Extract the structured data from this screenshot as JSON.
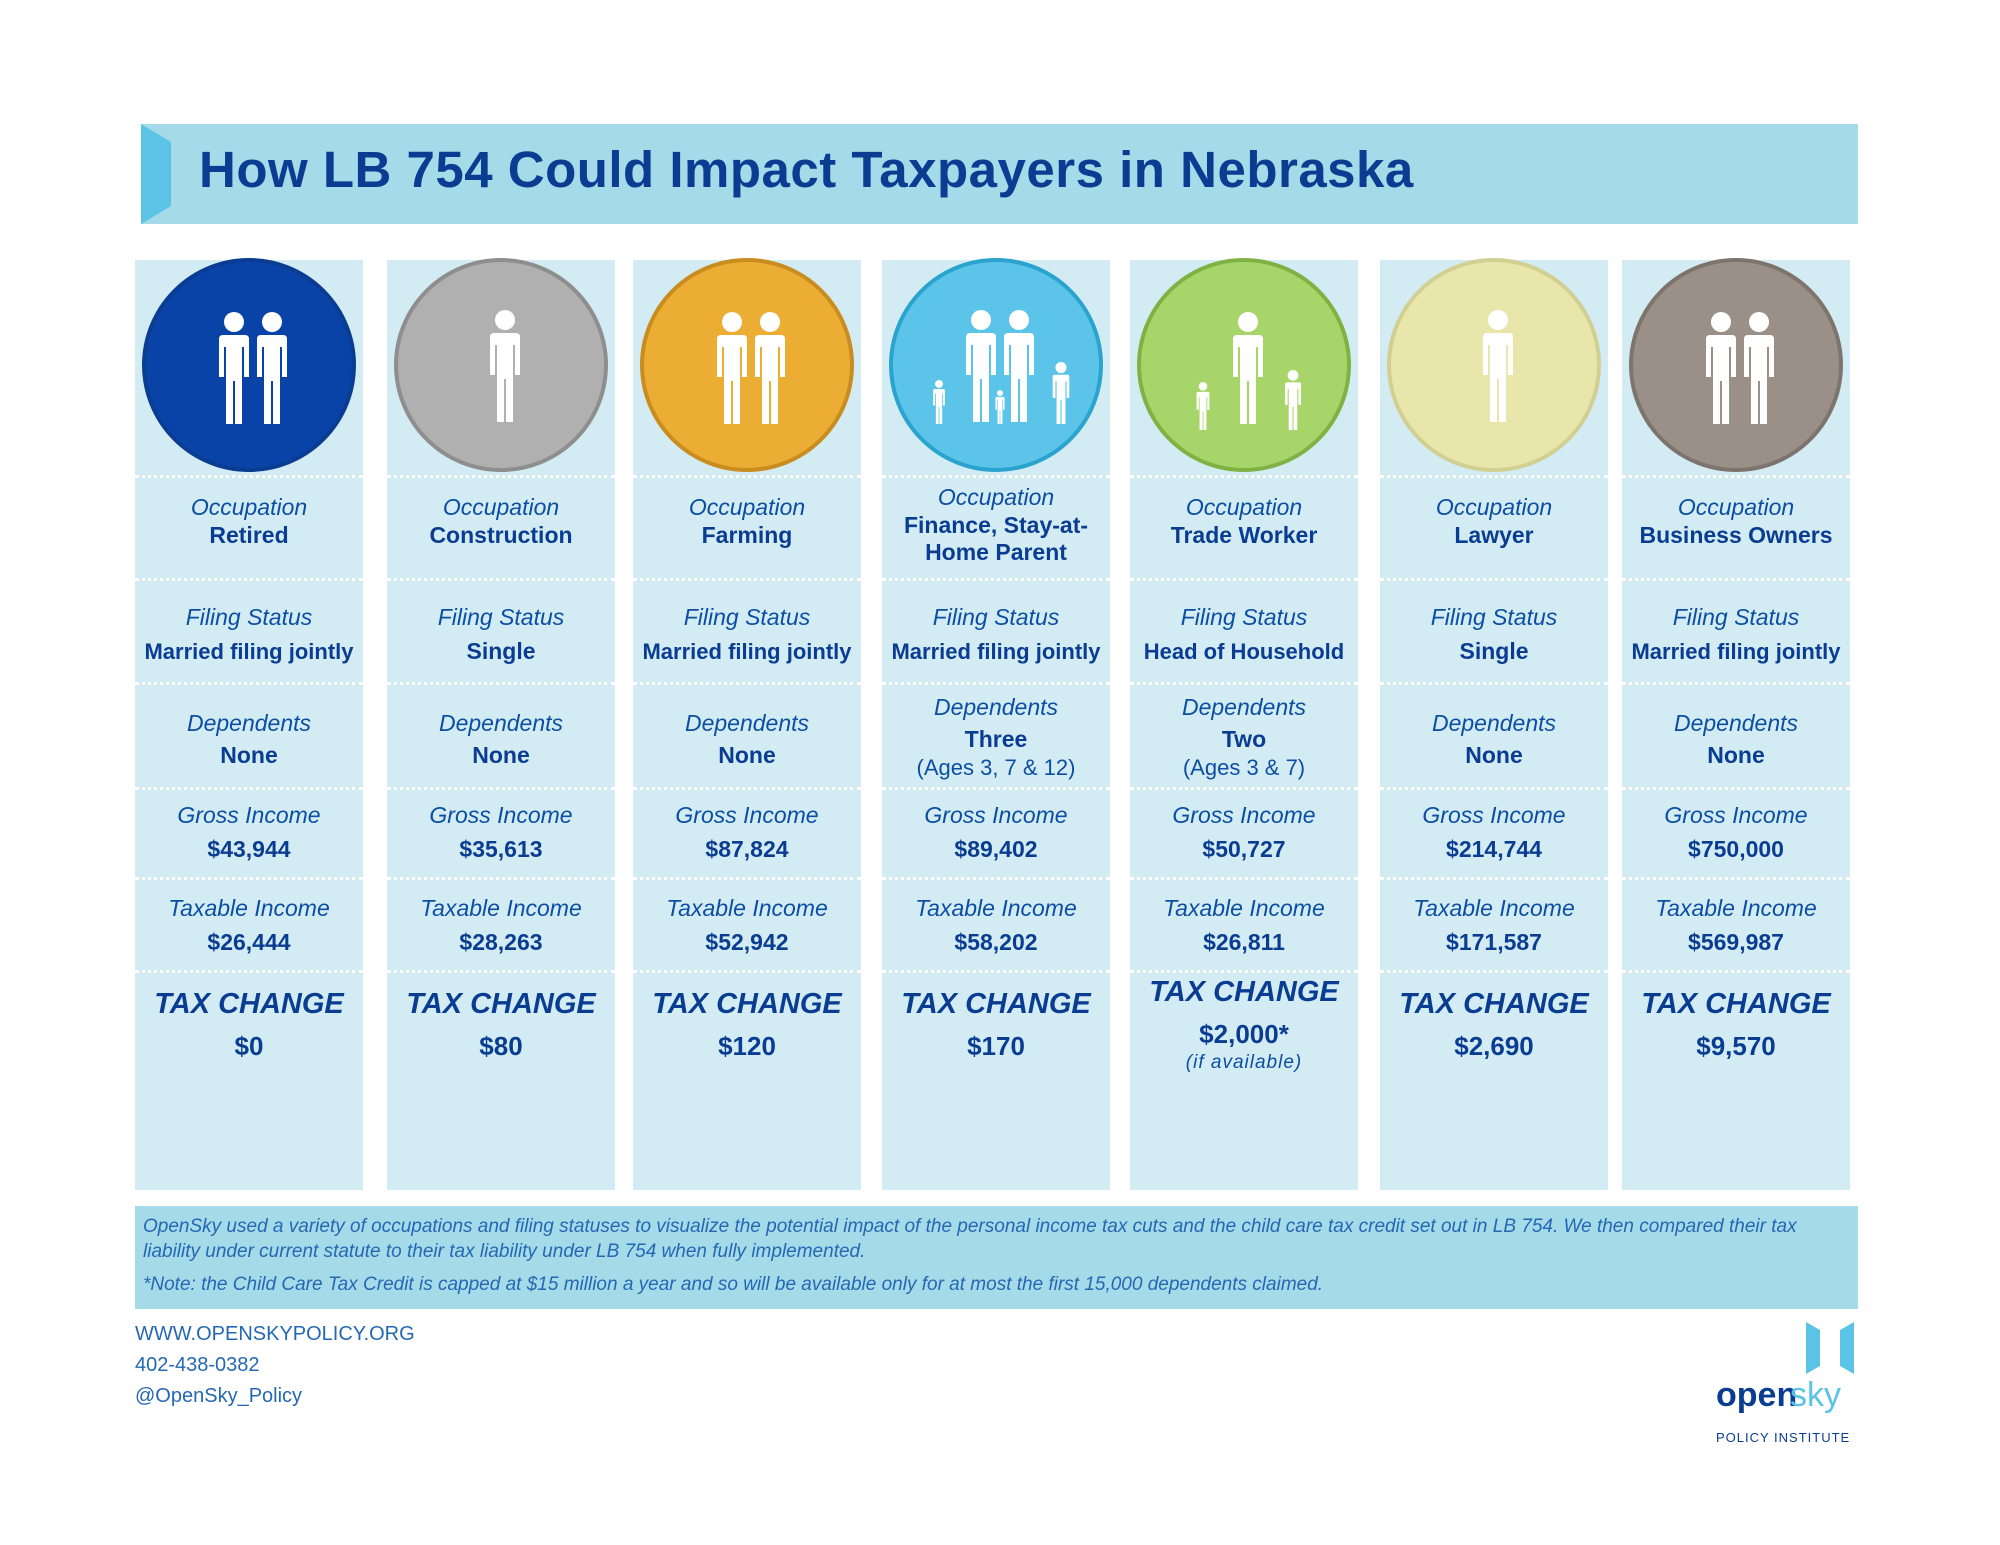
{
  "title": "How LB 754 Could Impact Taxpayers in Nebraska",
  "colors": {
    "navy": "#0a3d91",
    "light_blue_bg": "#d3ecf4",
    "banner": "#a5dae8",
    "accent": "#5bc4e6"
  },
  "columns": [
    {
      "occupation_label": "Occupation",
      "occupation": "Retired",
      "filing_label": "Filing Status",
      "filing": "Married filing jointly",
      "dependents_label": "Dependents",
      "dependents": "None",
      "dependents_ages": "",
      "gross_label": "Gross Income",
      "gross": "$43,944",
      "taxable_label": "Taxable Income",
      "taxable": "$26,444",
      "tax_change_label": "TAX CHANGE",
      "tax_change": "$0",
      "tax_note": "",
      "icon": "couple-icon",
      "color": "#0a43a8"
    },
    {
      "occupation_label": "Occupation",
      "occupation": "Construction",
      "filing_label": "Filing Status",
      "filing": "Single",
      "dependents_label": "Dependents",
      "dependents": "None",
      "dependents_ages": "",
      "gross_label": "Gross Income",
      "gross": "$35,613",
      "taxable_label": "Taxable Income",
      "taxable": "$28,263",
      "tax_change_label": "TAX CHANGE",
      "tax_change": "$80",
      "tax_note": "",
      "icon": "single-person-icon",
      "color": "#b0b0b0"
    },
    {
      "occupation_label": "Occupation",
      "occupation": "Farming",
      "filing_label": "Filing Status",
      "filing": "Married filing jointly",
      "dependents_label": "Dependents",
      "dependents": "None",
      "dependents_ages": "",
      "gross_label": "Gross Income",
      "gross": "$87,824",
      "taxable_label": "Taxable Income",
      "taxable": "$52,942",
      "tax_change_label": "TAX CHANGE",
      "tax_change": "$120",
      "tax_note": "",
      "icon": "couple-icon",
      "color": "#ecad35"
    },
    {
      "occupation_label": "Occupation",
      "occupation": "Finance, Stay-at-Home Parent",
      "filing_label": "Filing Status",
      "filing": "Married filing jointly",
      "dependents_label": "Dependents",
      "dependents": "Three",
      "dependents_ages": "(Ages 3, 7 & 12)",
      "gross_label": "Gross Income",
      "gross": "$89,402",
      "taxable_label": "Taxable Income",
      "taxable": "$58,202",
      "tax_change_label": "TAX CHANGE",
      "tax_change": "$170",
      "tax_note": "",
      "icon": "family-three-children-icon",
      "color": "#5cc4e8"
    },
    {
      "occupation_label": "Occupation",
      "occupation": "Trade Worker",
      "filing_label": "Filing Status",
      "filing": "Head of Household",
      "dependents_label": "Dependents",
      "dependents": "Two",
      "dependents_ages": "(Ages 3 & 7)",
      "gross_label": "Gross Income",
      "gross": "$50,727",
      "taxable_label": "Taxable Income",
      "taxable": "$26,811",
      "tax_change_label": "TAX CHANGE",
      "tax_change": "$2,000*",
      "tax_note": "(if available)",
      "icon": "parent-two-children-icon",
      "color": "#a7d56a"
    },
    {
      "occupation_label": "Occupation",
      "occupation": "Lawyer",
      "filing_label": "Filing Status",
      "filing": "Single",
      "dependents_label": "Dependents",
      "dependents": "None",
      "dependents_ages": "",
      "gross_label": "Gross Income",
      "gross": "$214,744",
      "taxable_label": "Taxable Income",
      "taxable": "$171,587",
      "tax_change_label": "TAX CHANGE",
      "tax_change": "$2,690",
      "tax_note": "",
      "icon": "single-person-icon",
      "color": "#e9e6ac"
    },
    {
      "occupation_label": "Occupation",
      "occupation": "Business Owners",
      "filing_label": "Filing Status",
      "filing": "Married filing jointly",
      "dependents_label": "Dependents",
      "dependents": "None",
      "dependents_ages": "",
      "gross_label": "Gross Income",
      "gross": "$750,000",
      "taxable_label": "Taxable Income",
      "taxable": "$569,987",
      "tax_change_label": "TAX CHANGE",
      "tax_change": "$9,570",
      "tax_note": "",
      "icon": "couple-icon",
      "color": "#9a9088"
    }
  ],
  "note": {
    "text": "OpenSky used a variety of occupations and filing statuses to visualize the potential impact of the personal income tax cuts and the child care tax credit set out in LB 754. We then compared their tax liability under current statute to their tax liability under LB 754 when fully implemented.",
    "footnote": "*Note: the Child Care Tax Credit is capped at $15 million a year and so will be available only for at most the first 15,000 dependents claimed."
  },
  "contact": {
    "website": "WWW.OPENSKYPOLICY.ORG",
    "phone": "402-438-0382",
    "twitter": "@OpenSky_Policy"
  },
  "logo": {
    "open": "open",
    "sky": "sky",
    "institute": "POLICY INSTITUTE"
  }
}
